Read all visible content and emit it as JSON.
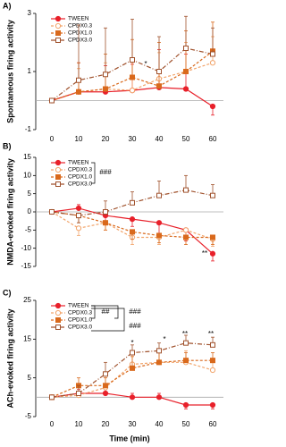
{
  "chart_data": [
    {
      "type": "line",
      "panel_label": "A)",
      "ylabel": "Spontaneous firing activity",
      "x": [
        0,
        10,
        20,
        30,
        40,
        50,
        60
      ],
      "xlim": [
        -6,
        64
      ],
      "xticks": [
        0,
        10,
        20,
        30,
        40,
        50,
        60
      ],
      "ylim": [
        -1,
        3
      ],
      "yticks": [
        -1,
        1,
        3
      ],
      "annotations": [
        "*"
      ],
      "series": [
        {
          "name": "TWEEN",
          "color": "#e8202a",
          "marker": "circle",
          "filled": true,
          "dash": "none",
          "values": [
            0,
            0.3,
            0.3,
            0.35,
            0.45,
            0.4,
            -0.2
          ],
          "errors": [
            0,
            1.0,
            0.9,
            0.9,
            1.3,
            1.2,
            0.3
          ]
        },
        {
          "name": "CPDX0.3",
          "color": "#f2a46a",
          "marker": "circle",
          "filled": false,
          "dash": "3,2",
          "values": [
            0,
            0.3,
            0.4,
            0.35,
            0.75,
            1.0,
            1.3
          ],
          "errors": [
            0,
            0.8,
            0.9,
            1.0,
            0.9,
            1.0,
            0.9
          ]
        },
        {
          "name": "CPDX1.0",
          "color": "#d9691c",
          "marker": "square",
          "filled": true,
          "dash": "3,2",
          "values": [
            0,
            0.3,
            0.4,
            0.8,
            0.5,
            1.0,
            1.7
          ],
          "errors": [
            0,
            1.0,
            1.2,
            1.3,
            1.5,
            1.4,
            1.0
          ]
        },
        {
          "name": "CPDX3.0",
          "color": "#a0522d",
          "marker": "square",
          "filled": false,
          "dash": "5,2,1,2",
          "values": [
            0,
            0.7,
            0.9,
            1.4,
            1.0,
            1.8,
            1.6
          ],
          "errors": [
            0,
            1.9,
            1.6,
            1.4,
            1.2,
            1.1,
            0.9
          ]
        }
      ]
    },
    {
      "type": "line",
      "panel_label": "B)",
      "ylabel": "NMDA-evoked firing activity",
      "x": [
        0,
        10,
        20,
        30,
        40,
        50,
        60
      ],
      "xlim": [
        -6,
        64
      ],
      "ylim": [
        -15,
        15
      ],
      "yticks": [
        -15,
        -10,
        -5,
        0,
        5,
        10,
        15
      ],
      "annotations": [
        "###",
        "**"
      ],
      "series": [
        {
          "name": "TWEEN",
          "color": "#e8202a",
          "marker": "circle",
          "filled": true,
          "dash": "none",
          "values": [
            0,
            1,
            -1,
            -2,
            -3,
            -5,
            -11.5
          ],
          "errors": [
            0,
            1,
            2,
            2,
            3,
            3,
            2
          ]
        },
        {
          "name": "CPDX0.3",
          "color": "#f2a46a",
          "marker": "circle",
          "filled": false,
          "dash": "3,2",
          "values": [
            0,
            -4.5,
            -3,
            -7,
            -7,
            -5,
            -7.5
          ],
          "errors": [
            0,
            2,
            2,
            2,
            2,
            2,
            2
          ]
        },
        {
          "name": "CPDX1.0",
          "color": "#d9691c",
          "marker": "square",
          "filled": true,
          "dash": "3,2",
          "values": [
            0,
            -1,
            -3,
            -5.5,
            -6.5,
            -7,
            -7
          ],
          "errors": [
            0,
            2,
            2,
            2,
            2,
            2,
            2
          ]
        },
        {
          "name": "CPDX3.0",
          "color": "#a0522d",
          "marker": "square",
          "filled": false,
          "dash": "5,2,1,2",
          "values": [
            0,
            -1,
            0,
            2.5,
            4.5,
            6,
            4.5
          ],
          "errors": [
            0,
            2,
            3,
            3,
            4,
            4,
            3
          ]
        }
      ]
    },
    {
      "type": "line",
      "panel_label": "C)",
      "ylabel": "ACh-evoked firing activity",
      "xlabel": "Time (min)",
      "x": [
        0,
        10,
        20,
        30,
        40,
        50,
        60
      ],
      "xlim": [
        -6,
        64
      ],
      "xticks": [
        0,
        10,
        20,
        30,
        40,
        50,
        60
      ],
      "ylim": [
        -5,
        25
      ],
      "yticks": [
        -5,
        5,
        15,
        25
      ],
      "annotations": [
        "##",
        "###",
        "###",
        "*",
        "*",
        "**",
        "**"
      ],
      "series": [
        {
          "name": "TWEEN",
          "color": "#e8202a",
          "marker": "circle",
          "filled": true,
          "dash": "none",
          "values": [
            0,
            1,
            1,
            0,
            0,
            -2,
            -2
          ],
          "errors": [
            0,
            1,
            1,
            1,
            1,
            1,
            1
          ]
        },
        {
          "name": "CPDX0.3",
          "color": "#f2a46a",
          "marker": "circle",
          "filled": false,
          "dash": "3,2",
          "values": [
            0,
            0.5,
            2.5,
            8.5,
            9,
            9,
            7
          ],
          "errors": [
            0,
            2,
            3,
            3,
            3,
            3,
            3
          ]
        },
        {
          "name": "CPDX1.0",
          "color": "#d9691c",
          "marker": "square",
          "filled": true,
          "dash": "3,2",
          "values": [
            0,
            3,
            3,
            7.5,
            9,
            9.5,
            9.5
          ],
          "errors": [
            0,
            2,
            2,
            3,
            3,
            2,
            2
          ]
        },
        {
          "name": "CPDX3.0",
          "color": "#a0522d",
          "marker": "square",
          "filled": false,
          "dash": "5,2,1,2",
          "values": [
            0,
            1,
            6,
            11.5,
            12,
            14,
            13.5
          ],
          "errors": [
            0,
            2,
            3,
            2,
            2,
            2,
            2
          ]
        }
      ]
    }
  ]
}
